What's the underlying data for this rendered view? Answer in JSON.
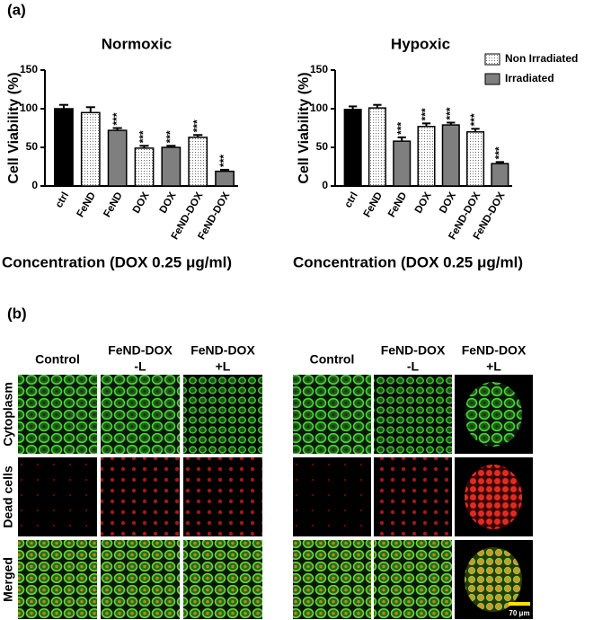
{
  "panel_a": {
    "label": "(a)"
  },
  "chart_data": [
    {
      "type": "bar",
      "title": "Normoxic",
      "y_label": "Cell Viability (%)",
      "x_label": "Concentration (DOX 0.25 μg/ml)",
      "categories": [
        "ctrl",
        "FeND",
        "FeND",
        "DOX",
        "DOX",
        "FeND-DOX",
        "FeND-DOX"
      ],
      "values": [
        100,
        95,
        72,
        49,
        50,
        63,
        19
      ],
      "errors": [
        5,
        7,
        3,
        3,
        2,
        3,
        2
      ],
      "fills": [
        "#000000",
        "dots",
        "#7f7f7f",
        "dots",
        "#7f7f7f",
        "dots",
        "#7f7f7f"
      ],
      "annotations": [
        null,
        null,
        "***",
        "***",
        "***",
        "***",
        "***"
      ],
      "ylim": [
        0,
        150
      ],
      "yticks": [
        0,
        50,
        100,
        150
      ],
      "grid": false
    },
    {
      "type": "bar",
      "title": "Hypoxic",
      "y_label": "Cell Viability (%)",
      "x_label": "Concentration (DOX 0.25 μg/ml)",
      "categories": [
        "ctrl",
        "FeND",
        "FeND",
        "DOX",
        "DOX",
        "FeND-DOX",
        "FeND-DOX"
      ],
      "values": [
        99,
        101,
        58,
        77,
        79,
        70,
        29
      ],
      "errors": [
        4,
        4,
        5,
        4,
        3,
        4,
        2
      ],
      "fills": [
        "#000000",
        "dots",
        "#7f7f7f",
        "dots",
        "#7f7f7f",
        "dots",
        "#7f7f7f"
      ],
      "annotations": [
        null,
        null,
        "***",
        "***",
        "***",
        "***",
        "***"
      ],
      "ylim": [
        0,
        150
      ],
      "yticks": [
        0,
        50,
        100,
        150
      ],
      "grid": false,
      "legend": [
        {
          "name": "Non Irradiated",
          "fill": "dots"
        },
        {
          "name": "Irradiated",
          "fill": "#7f7f7f"
        }
      ]
    }
  ],
  "panel_b": {
    "label": "(b)",
    "groups": [
      {
        "columns": [
          [
            "Control"
          ],
          [
            "FeND-DOX",
            "-L"
          ],
          [
            "FeND-DOX",
            "+L"
          ]
        ]
      },
      {
        "columns": [
          [
            "Control"
          ],
          [
            "FeND-DOX",
            "-L"
          ],
          [
            "FeND-DOX",
            "+L"
          ]
        ]
      }
    ],
    "rows": [
      "Cytoplasm",
      "Dead cells",
      "Merged"
    ],
    "scale_bar": "70 μm"
  }
}
